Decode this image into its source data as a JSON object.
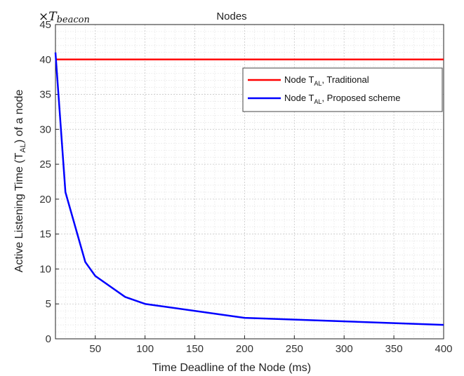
{
  "chart_data": {
    "type": "line",
    "title": "Nodes",
    "xlabel": "Time Deadline of the Node (ms)",
    "ylabel": "Active Listening Time (T_AL) of a node",
    "ylabel_parts": {
      "before": "Active Listening Time (T",
      "sub": "AL",
      "after": ") of a node"
    },
    "y_multiplier": {
      "symbol": "×",
      "base": "T",
      "sub": "beacon"
    },
    "xlim": [
      10,
      400
    ],
    "ylim": [
      0,
      45
    ],
    "xticks": [
      50,
      100,
      150,
      200,
      250,
      300,
      350,
      400
    ],
    "yticks": [
      0,
      5,
      10,
      15,
      20,
      25,
      30,
      35,
      40,
      45
    ],
    "grid": true,
    "legend_position": "upper-right",
    "series": [
      {
        "name": "Node T_AL, Traditional",
        "legend_parts": {
          "before": "Node T",
          "sub": "AL",
          "after": ", Traditional"
        },
        "color": "#ff0000",
        "points": [
          [
            10,
            40
          ],
          [
            400,
            40
          ]
        ]
      },
      {
        "name": "Node T_AL, Proposed scheme",
        "legend_parts": {
          "before": "Node T",
          "sub": "AL",
          "after": ", Proposed scheme"
        },
        "color": "#0000ff",
        "points": [
          [
            10,
            41
          ],
          [
            20,
            21
          ],
          [
            40,
            11
          ],
          [
            50,
            9
          ],
          [
            80,
            6
          ],
          [
            100,
            5
          ],
          [
            200,
            3
          ],
          [
            400,
            2
          ]
        ]
      }
    ]
  }
}
